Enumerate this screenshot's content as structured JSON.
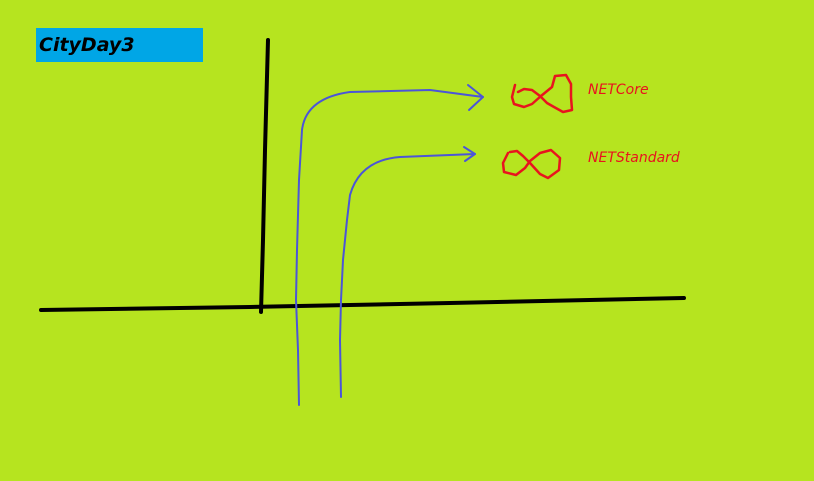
{
  "title": "CityDay3",
  "labels": {
    "net_core": "NETCore",
    "net_standard": "NETStandard"
  },
  "colors": {
    "background": "#b6e41f",
    "title_box": "#00a6e6",
    "title_text": "#000000",
    "axes": "#000000",
    "arrows": "#4b55d8",
    "loops": "#e8141e",
    "label_text": "#e8141e"
  }
}
